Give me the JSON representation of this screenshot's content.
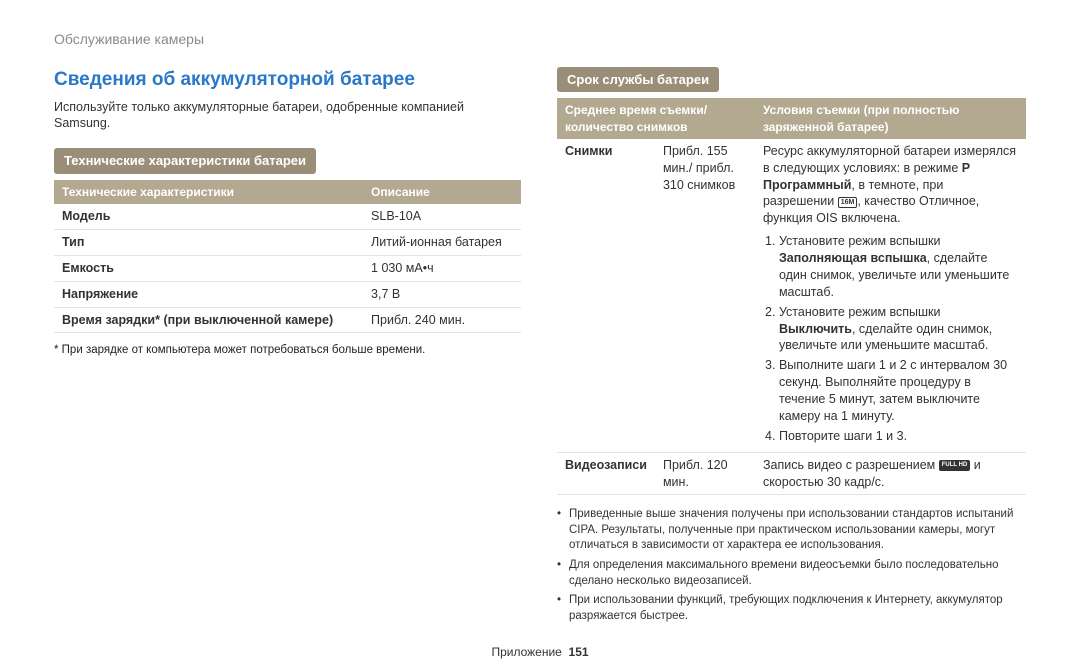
{
  "header": {
    "breadcrumb": "Обслуживание камеры"
  },
  "left": {
    "title": "Сведения об аккумуляторной батарее",
    "intro": "Используйте только аккумуляторные батареи, одобренные компанией Samsung.",
    "specs_heading": "Технические характеристики батареи",
    "specs_th1": "Технические характеристики",
    "specs_th2": "Описание",
    "specs": {
      "r1k": "Модель",
      "r1v": "SLB-10A",
      "r2k": "Тип",
      "r2v": "Литий-ионная батарея",
      "r3k": "Емкость",
      "r3v": "1 030 мА•ч",
      "r4k": "Напряжение",
      "r4v": "3,7 В",
      "r5k": "Время зарядки* (при выключенной камере)",
      "r5v": "Прибл. 240 мин."
    },
    "footnote": "* При зарядке от компьютера может потребоваться больше времени."
  },
  "right": {
    "heading": "Срок службы батареи",
    "th1": "Среднее время съемки/ количество снимков",
    "th2": "Условия съемки (при полностью заряженной батарее)",
    "row1_label": "Снимки",
    "row1_value": "Прибл. 155 мин./ прибл. 310 снимков",
    "cond_intro_1": "Ресурс аккумуляторной батареи измерялся в следующих условиях: в режиме ",
    "cond_intro_p_letter": "P",
    "cond_intro_2": "Программный",
    "cond_intro_3": ", в темноте, при разрешении ",
    "cond_intro_icon1": "16M",
    "cond_intro_4": ", качество Отличное, функция OIS включена.",
    "step1a": "Установите режим вспышки ",
    "step1b": "Заполняющая вспышка",
    "step1c": ", сделайте один снимок, увеличьте или уменьшите масштаб.",
    "step2a": "Установите режим вспышки ",
    "step2b": "Выключить",
    "step2c": ", сделайте один снимок, увеличьте или уменьшите масштаб.",
    "step3": "Выполните шаги 1 и 2 с интервалом 30 секунд. Выполняйте процедуру в течение 5 минут, затем выключите камеру на 1 минуту.",
    "step4": "Повторите шаги 1 и 3.",
    "row2_label": "Видеозаписи",
    "row2_value": "Прибл. 120 мин.",
    "row2_cond_a": "Запись видео с разрешением ",
    "row2_icon": "FULL HD",
    "row2_cond_b": " и скоростью 30 кадр/с.",
    "bullet1": "Приведенные выше значения получены при использовании стандартов испытаний CIPA. Результаты, полученные при практическом использовании камеры, могут отличаться в зависимости от характера ее использования.",
    "bullet2": "Для определения максимального времени видеосъемки было последовательно сделано несколько видеозаписей.",
    "bullet3": "При использовании функций, требующих подключения к Интернету, аккумулятор разряжается быстрее."
  },
  "footer": {
    "section": "Приложение",
    "page": "151"
  },
  "colors": {
    "heading_blue": "#2a78c8",
    "pill_bg": "#9b8e78",
    "th_bg": "#b3a890",
    "border": "#e5e2da",
    "breadcrumb": "#8a8a8a"
  }
}
